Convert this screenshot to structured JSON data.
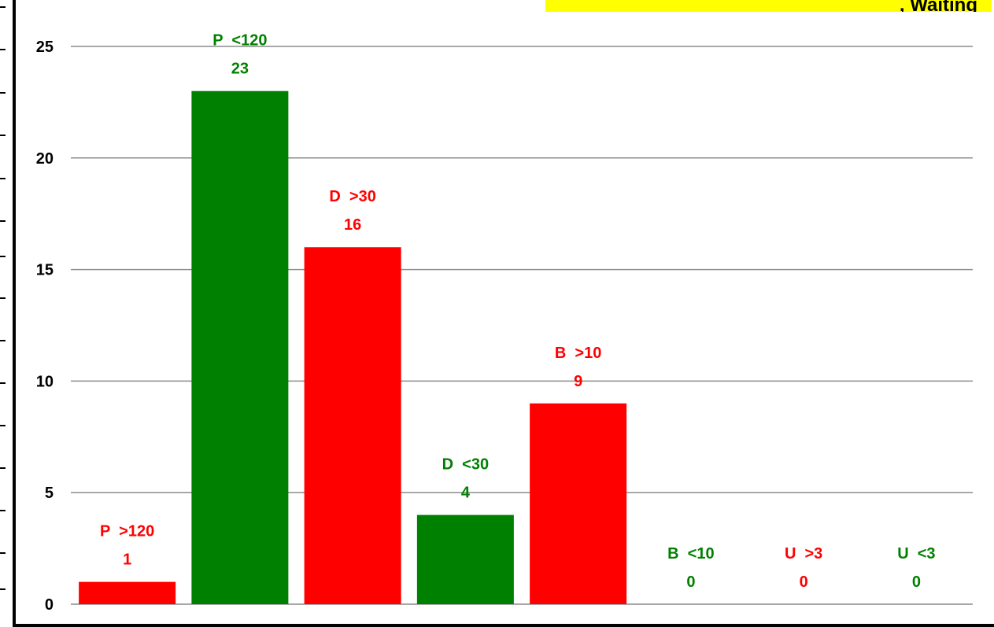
{
  "title_fragment": ", Waiting",
  "chart_data": {
    "type": "bar",
    "categories": [
      "P >120",
      "P <120",
      "D >30",
      "D <30",
      "B >10",
      "B <10",
      "U >3",
      "U <3"
    ],
    "values": [
      1,
      23,
      16,
      4,
      9,
      0,
      0,
      0
    ],
    "colors": [
      "#ff0000",
      "#008000",
      "#ff0000",
      "#008000",
      "#ff0000",
      "#008000",
      "#ff0000",
      "#008000"
    ],
    "ylim": [
      0,
      25
    ],
    "yticks": [
      0,
      5,
      10,
      15,
      20,
      25
    ],
    "grid": true,
    "xlabel": "",
    "ylabel": ""
  }
}
